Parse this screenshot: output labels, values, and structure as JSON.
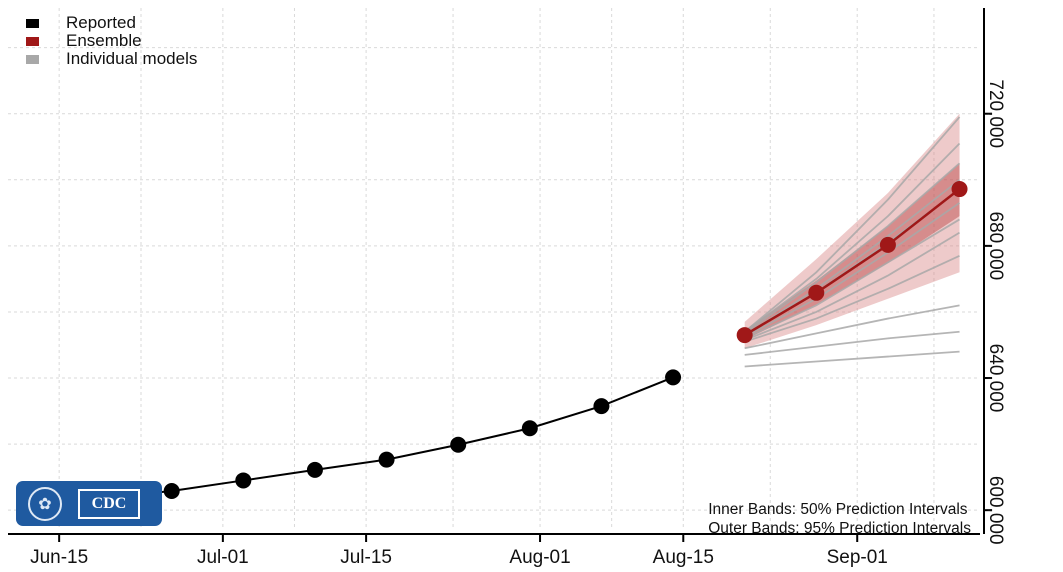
{
  "legend": [
    {
      "label": "Reported",
      "color": "#000000"
    },
    {
      "label": "Ensemble",
      "color": "#a01818"
    },
    {
      "label": "Individual models",
      "color": "#a8a8a8"
    }
  ],
  "notes": {
    "line1": "Inner Bands: 50% Prediction Intervals",
    "line2": "Outer Bands: 95% Prediction Intervals"
  },
  "logo": {
    "text": "CDC",
    "icon": "hhs-eagle-icon"
  },
  "chart_data": {
    "type": "line",
    "x_ticks": [
      "Jun-15",
      "Jul-01",
      "Jul-15",
      "Aug-01",
      "Aug-15",
      "Sep-01"
    ],
    "y_ticks": [
      600000,
      640000,
      680000,
      720000
    ],
    "y_tick_labels": [
      "600,000",
      "640,000",
      "680,000",
      "720,000"
    ],
    "xlim": [
      "2021-06-10",
      "2021-09-13"
    ],
    "ylim": [
      594000,
      752000
    ],
    "grid": true,
    "legend_position": "top-left",
    "y_axis_side": "right",
    "reported": {
      "x": [
        "2021-06-19",
        "2021-06-26",
        "2021-07-03",
        "2021-07-10",
        "2021-07-17",
        "2021-07-24",
        "2021-07-31",
        "2021-08-07",
        "2021-08-14"
      ],
      "y": [
        603600,
        605800,
        609000,
        612200,
        615300,
        619800,
        624800,
        631500,
        640200
      ]
    },
    "ensemble": {
      "x": [
        "2021-08-21",
        "2021-08-28",
        "2021-09-04",
        "2021-09-11"
      ],
      "y": [
        653000,
        665800,
        680300,
        697200
      ],
      "inner_band": {
        "lower": [
          651500,
          662200,
          674800,
          689000
        ],
        "upper": [
          654500,
          669500,
          686000,
          705000
        ]
      },
      "outer_band": {
        "lower": [
          649000,
          656000,
          664000,
          672000
        ],
        "upper": [
          657000,
          676000,
          696000,
          720000
        ]
      }
    },
    "individual_models": [
      {
        "y": [
          654000,
          672000,
          694000,
          719000
        ]
      },
      {
        "y": [
          654000,
          670000,
          689000,
          711000
        ]
      },
      {
        "y": [
          653500,
          669000,
          686000,
          705000
        ]
      },
      {
        "y": [
          653000,
          667000,
          683000,
          700000
        ]
      },
      {
        "y": [
          653000,
          666000,
          681000,
          697000
        ]
      },
      {
        "y": [
          652500,
          664000,
          678000,
          693000
        ]
      },
      {
        "y": [
          652000,
          662000,
          675000,
          688000
        ]
      },
      {
        "y": [
          651500,
          660000,
          671000,
          684000
        ]
      },
      {
        "y": [
          651000,
          658000,
          667000,
          677000
        ]
      },
      {
        "y": [
          649000,
          653500,
          658000,
          662000
        ]
      },
      {
        "y": [
          647000,
          649500,
          652000,
          654000
        ]
      },
      {
        "y": [
          643500,
          645000,
          646500,
          648000
        ]
      }
    ]
  }
}
